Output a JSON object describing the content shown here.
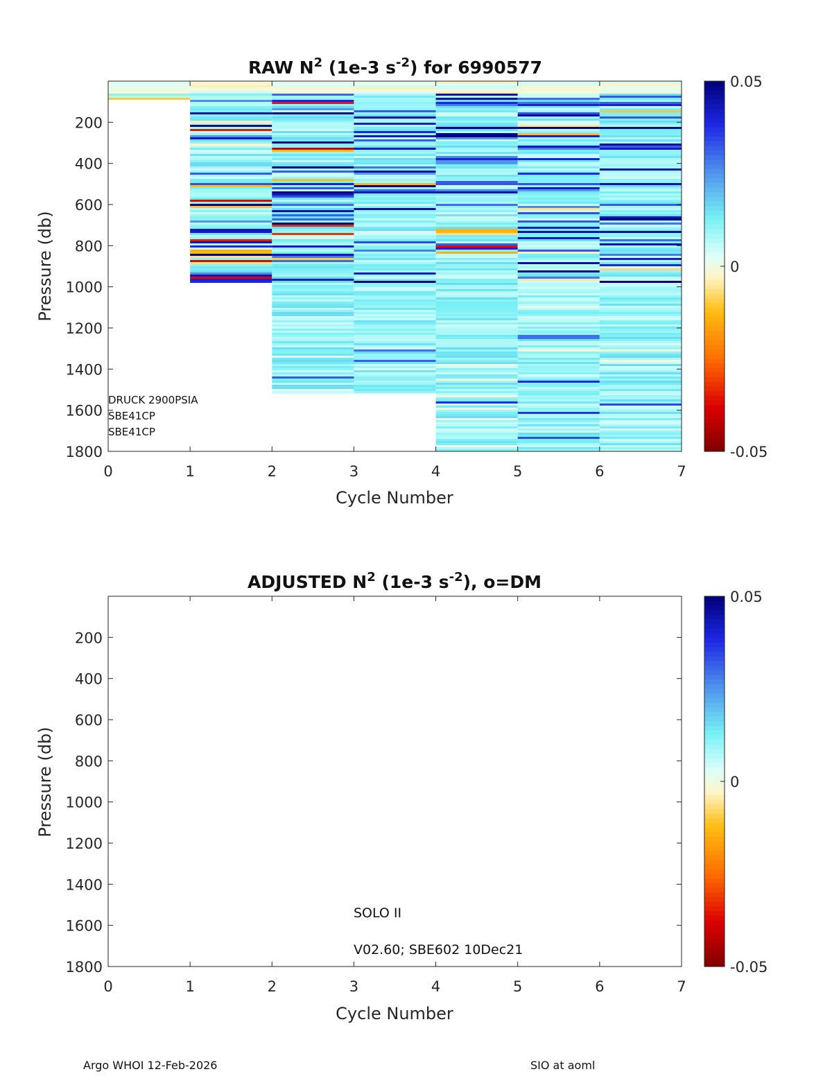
{
  "chart_data": [
    {
      "type": "heatmap",
      "title_main": "RAW N",
      "title_sup1": "2",
      "title_mid": " (1e-3 s",
      "title_sup2": "-2",
      "title_end": ") for 6990577",
      "xlabel": "Cycle Number",
      "ylabel": "Pressure (db)",
      "xlim": [
        0,
        7
      ],
      "ylim": [
        0,
        1800
      ],
      "y_reversed": true,
      "xticks": [
        "0",
        "1",
        "2",
        "3",
        "4",
        "5",
        "6",
        "7"
      ],
      "yticks": [
        "200",
        "400",
        "600",
        "800",
        "1000",
        "1200",
        "1400",
        "1600",
        "1800"
      ],
      "colorbar": {
        "ticks": [
          "0.05",
          "0",
          "-0.05"
        ],
        "range": [
          -0.05,
          0.05
        ],
        "colormap": "jet-like with white/yellow center"
      },
      "sensor_labels": [
        "DRUCK 2900PSIA",
        "SBE41CP",
        "SBE41CP"
      ],
      "profiles": [
        {
          "cycle": 0,
          "p_min": 0,
          "p_max": 90
        },
        {
          "cycle": 1,
          "p_min": 0,
          "p_max": 980
        },
        {
          "cycle": 2,
          "p_min": 0,
          "p_max": 1520
        },
        {
          "cycle": 3,
          "p_min": 0,
          "p_max": 1520
        },
        {
          "cycle": 4,
          "p_min": 0,
          "p_max": 1800
        },
        {
          "cycle": 5,
          "p_min": 0,
          "p_max": 1800
        },
        {
          "cycle": 6,
          "p_min": 0,
          "p_max": 1800
        }
      ]
    },
    {
      "type": "heatmap",
      "title_main": "ADJUSTED N",
      "title_sup1": "2",
      "title_mid": " (1e-3 s",
      "title_sup2": "-2",
      "title_end": "), o=DM",
      "xlabel": "Cycle Number",
      "ylabel": "Pressure (db)",
      "xlim": [
        0,
        7
      ],
      "ylim": [
        0,
        1800
      ],
      "y_reversed": true,
      "xticks": [
        "0",
        "1",
        "2",
        "3",
        "4",
        "5",
        "6",
        "7"
      ],
      "yticks": [
        "200",
        "400",
        "600",
        "800",
        "1000",
        "1200",
        "1400",
        "1600",
        "1800"
      ],
      "colorbar": {
        "ticks": [
          "0.05",
          "0",
          "-0.05"
        ],
        "range": [
          -0.05,
          0.05
        ],
        "colormap": "jet-like with white/yellow center"
      },
      "annotations": [
        "SOLO II",
        "V02.60; SBE602 10Dec21"
      ],
      "profiles": []
    }
  ],
  "footer": {
    "left": "Argo WHOI 12-Feb-2026",
    "right": "SIO at aoml"
  }
}
